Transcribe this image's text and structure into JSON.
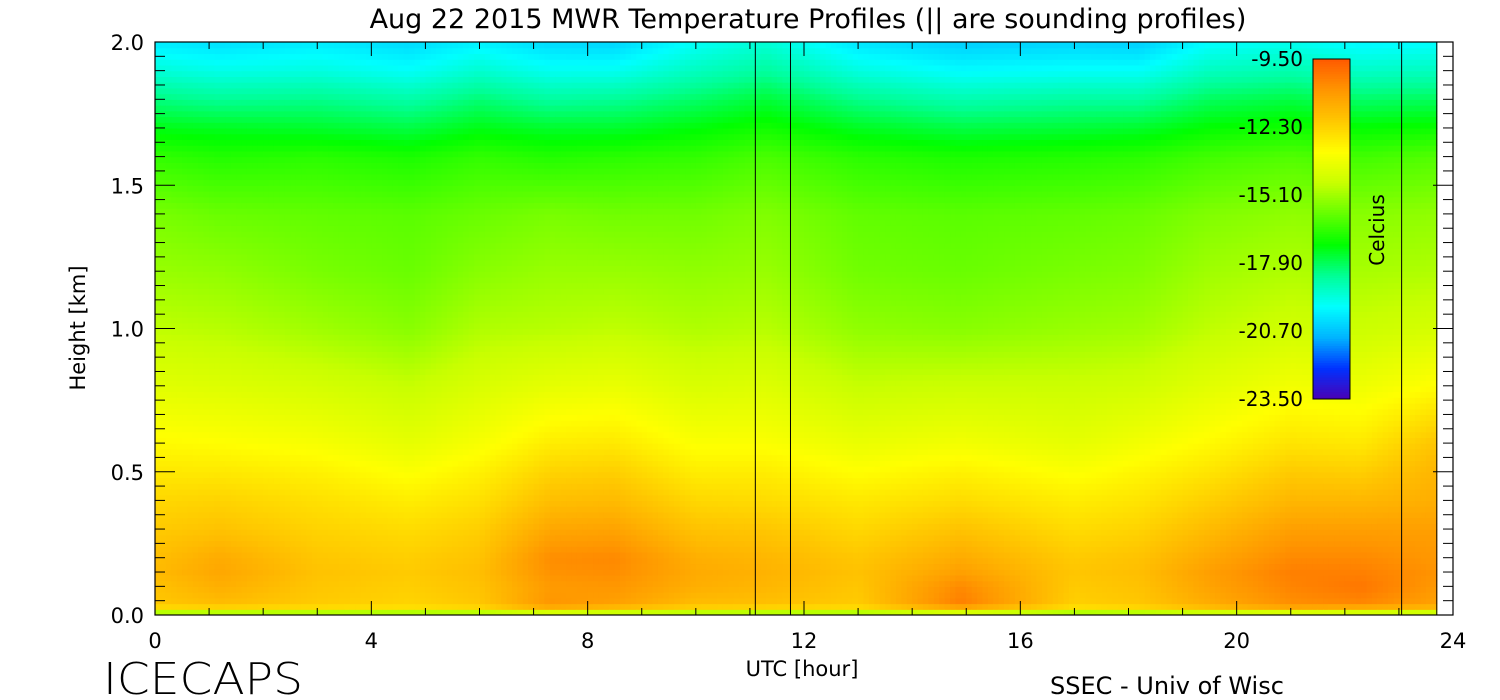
{
  "chart_data": {
    "type": "heatmap",
    "title": "Aug 22 2015 MWR Temperature Profiles (|| are sounding profiles)",
    "xlabel": "UTC [hour]",
    "ylabel": "Height [km]",
    "xlim": [
      0,
      24
    ],
    "ylim": [
      0,
      2.0
    ],
    "x_ticks": [
      "0",
      "4",
      "8",
      "12",
      "16",
      "20",
      "24"
    ],
    "y_ticks": [
      "0.0",
      "0.5",
      "1.0",
      "1.5",
      "2.0"
    ],
    "x_tick_values": [
      0,
      4,
      8,
      12,
      16,
      20,
      24
    ],
    "y_tick_values": [
      0,
      0.5,
      1.0,
      1.5,
      2.0
    ],
    "data_end_hour": 23.7,
    "sounding_profiles_utc": [
      [
        11.1,
        11.75
      ],
      [
        23.05,
        23.7
      ]
    ],
    "colorbar": {
      "label": "Celcius",
      "ticks": [
        "-9.50",
        "-12.30",
        "-15.10",
        "-17.90",
        "-20.70",
        "-23.50"
      ],
      "tick_values": [
        -9.5,
        -12.3,
        -15.1,
        -17.9,
        -20.7,
        -23.5
      ],
      "range": [
        -23.5,
        -9.5
      ],
      "colors": [
        "#4b00b4",
        "#0032ff",
        "#00b4ff",
        "#00ffff",
        "#00ff96",
        "#00ff00",
        "#64ff00",
        "#c8ff00",
        "#ffff00",
        "#ffc800",
        "#ff9600",
        "#ff5a00"
      ]
    },
    "heights_km": [
      0.0,
      0.02,
      0.05,
      0.1,
      0.15,
      0.2,
      0.3,
      0.4,
      0.5,
      0.6,
      0.8,
      1.0,
      1.2,
      1.4,
      1.6,
      1.7,
      1.8,
      1.9,
      2.0
    ],
    "profile_hours": [
      0,
      1.2,
      3.0,
      4.7,
      6.0,
      7.3,
      8.5,
      10.0,
      11.3,
      13.0,
      14.9,
      17.0,
      18.2,
      19.5,
      21.0,
      22.3,
      23.6
    ],
    "temperature_c": [
      [
        -17,
        -12.6,
        -12.0,
        -11.9,
        -11.7,
        -11.8,
        -12.1,
        -12.4,
        -12.8,
        -13.2,
        -14.0,
        -14.7,
        -15.2,
        -15.6,
        -16.5,
        -17.3,
        -18.2,
        -19.2,
        -20.0
      ],
      [
        -17,
        -12.5,
        -11.7,
        -11.4,
        -11.2,
        -11.3,
        -11.9,
        -12.3,
        -12.8,
        -13.3,
        -14.1,
        -14.8,
        -15.3,
        -15.8,
        -16.7,
        -17.4,
        -18.4,
        -19.4,
        -20.2
      ],
      [
        -17,
        -12.6,
        -12.1,
        -12.0,
        -11.9,
        -12.0,
        -12.3,
        -12.6,
        -13.0,
        -13.5,
        -14.3,
        -15.1,
        -15.6,
        -15.9,
        -16.6,
        -17.5,
        -18.3,
        -19.3,
        -20.0
      ],
      [
        -17,
        -12.7,
        -12.3,
        -12.2,
        -12.1,
        -12.2,
        -12.5,
        -12.9,
        -13.4,
        -13.9,
        -14.6,
        -15.4,
        -15.8,
        -16.0,
        -16.8,
        -17.7,
        -18.6,
        -19.6,
        -20.3
      ],
      [
        -17,
        -12.5,
        -12.0,
        -11.9,
        -11.8,
        -11.9,
        -12.2,
        -12.6,
        -13.0,
        -13.5,
        -14.2,
        -14.9,
        -15.4,
        -15.8,
        -16.5,
        -17.3,
        -18.1,
        -19.1,
        -19.9
      ],
      [
        -17,
        -11.5,
        -10.8,
        -10.9,
        -10.7,
        -10.6,
        -11.2,
        -11.8,
        -12.3,
        -12.9,
        -13.9,
        -14.8,
        -15.2,
        -15.6,
        -16.7,
        -17.5,
        -18.5,
        -19.5,
        -20.3
      ],
      [
        -17,
        -11.9,
        -11.0,
        -10.8,
        -10.6,
        -10.5,
        -11.1,
        -11.7,
        -12.2,
        -12.8,
        -13.8,
        -14.7,
        -15.2,
        -15.7,
        -16.6,
        -17.5,
        -18.4,
        -19.5,
        -20.4
      ],
      [
        -17,
        -12.4,
        -11.7,
        -11.4,
        -11.3,
        -11.4,
        -11.9,
        -12.4,
        -12.9,
        -13.4,
        -14.2,
        -14.9,
        -15.3,
        -15.7,
        -16.5,
        -17.2,
        -18.0,
        -18.9,
        -19.6
      ],
      [
        -17,
        -12.5,
        -11.8,
        -11.6,
        -11.5,
        -11.6,
        -12.0,
        -12.5,
        -12.9,
        -13.4,
        -14.1,
        -14.8,
        -15.2,
        -15.5,
        -16.2,
        -16.9,
        -17.6,
        -18.5,
        -19.2
      ],
      [
        -17,
        -12.6,
        -12.1,
        -12.0,
        -11.9,
        -12.0,
        -12.4,
        -12.8,
        -13.3,
        -13.8,
        -14.6,
        -15.3,
        -15.7,
        -15.9,
        -16.6,
        -17.4,
        -18.3,
        -19.3,
        -20.1
      ],
      [
        -17,
        -11.4,
        -10.3,
        -10.5,
        -11.0,
        -11.3,
        -11.9,
        -12.5,
        -13.0,
        -13.6,
        -14.5,
        -15.4,
        -15.8,
        -16.0,
        -16.8,
        -17.7,
        -18.7,
        -19.7,
        -20.5
      ],
      [
        -17,
        -12.7,
        -12.2,
        -12.1,
        -12.0,
        -12.1,
        -12.5,
        -12.9,
        -13.4,
        -13.9,
        -14.5,
        -15.2,
        -15.6,
        -15.9,
        -16.7,
        -17.6,
        -18.5,
        -19.6,
        -20.4
      ],
      [
        -17,
        -12.5,
        -12.0,
        -11.9,
        -11.8,
        -11.9,
        -12.3,
        -12.7,
        -13.1,
        -13.6,
        -14.4,
        -15.1,
        -15.5,
        -15.8,
        -16.6,
        -17.5,
        -18.5,
        -19.6,
        -20.5
      ],
      [
        -17,
        -11.9,
        -11.3,
        -11.1,
        -11.0,
        -11.2,
        -11.7,
        -12.2,
        -12.7,
        -13.2,
        -14.0,
        -14.7,
        -15.1,
        -15.5,
        -16.3,
        -17.1,
        -17.9,
        -18.9,
        -19.7
      ],
      [
        -17,
        -11.4,
        -10.6,
        -10.4,
        -10.3,
        -10.5,
        -11.0,
        -11.6,
        -12.1,
        -12.7,
        -13.6,
        -14.4,
        -14.9,
        -15.3,
        -16.1,
        -16.9,
        -17.7,
        -18.7,
        -19.5
      ],
      [
        -17,
        -11.6,
        -10.4,
        -10.1,
        -10.3,
        -10.5,
        -11.0,
        -11.6,
        -12.2,
        -12.8,
        -13.7,
        -14.5,
        -15.0,
        -15.4,
        -16.3,
        -17.1,
        -18.0,
        -19.0,
        -19.8
      ],
      [
        -17,
        -11.8,
        -11.0,
        -10.8,
        -10.7,
        -10.8,
        -11.0,
        -11.4,
        -11.6,
        -12.0,
        -13.3,
        -14.3,
        -14.9,
        -15.3,
        -16.1,
        -17.0,
        -17.9,
        -18.9,
        -19.7
      ]
    ]
  },
  "footer": {
    "site_label": "ICECAPS",
    "credit": "SSEC - Univ of Wisc"
  }
}
